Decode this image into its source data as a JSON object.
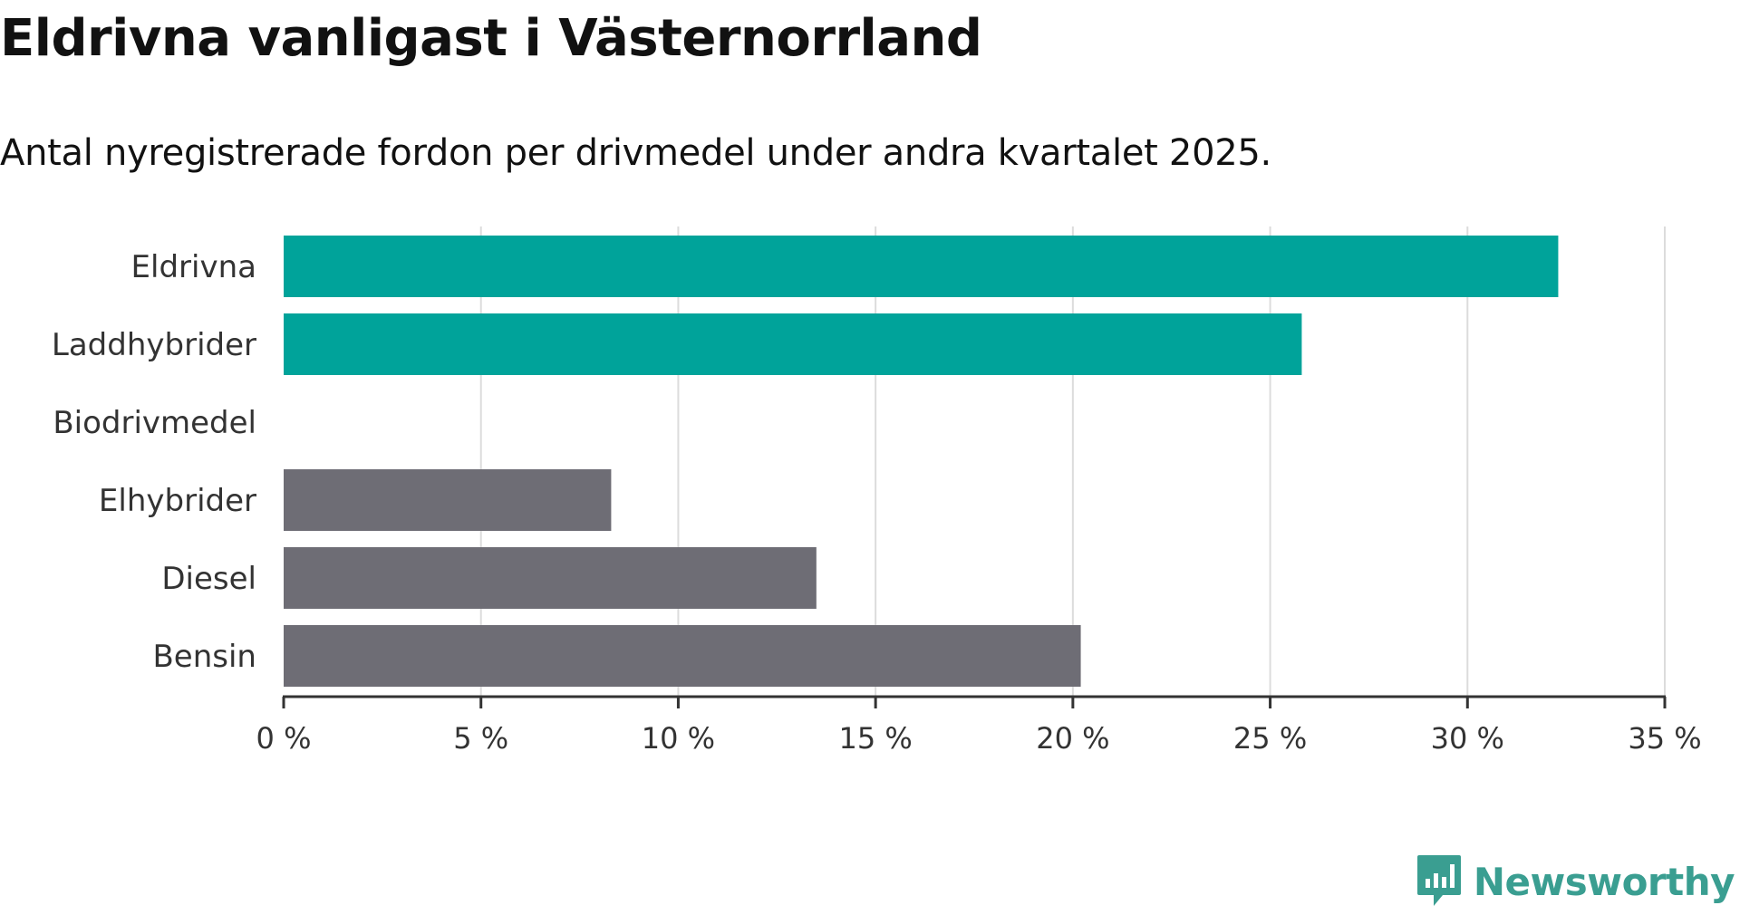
{
  "header": {
    "title": "Eldrivna vanligast i Västernorrland",
    "subtitle": "Antal nyregistrerade fordon per drivmedel under andra kvartalet 2025."
  },
  "colors": {
    "highlight": "#00a39a",
    "neutral": "#6e6d75",
    "grid": "#dcdcdc",
    "axis": "#333333",
    "brand": "#3a9e91"
  },
  "chart_data": {
    "type": "bar",
    "orientation": "horizontal",
    "categories": [
      "Eldrivna",
      "Laddhybrider",
      "Biodrivmedel",
      "Elhybrider",
      "Diesel",
      "Bensin"
    ],
    "values": [
      32.3,
      25.8,
      0,
      8.3,
      13.5,
      20.2
    ],
    "highlighted": [
      true,
      true,
      false,
      false,
      false,
      false
    ],
    "xlim": [
      0,
      35
    ],
    "ticks": [
      0,
      5,
      10,
      15,
      20,
      25,
      30,
      35
    ],
    "tick_labels": [
      "0 %",
      "5 %",
      "10 %",
      "15 %",
      "20 %",
      "25 %",
      "30 %",
      "35 %"
    ],
    "grid": true
  },
  "brand": {
    "name": "Newsworthy",
    "icon": "newsworthy-logo-icon"
  }
}
